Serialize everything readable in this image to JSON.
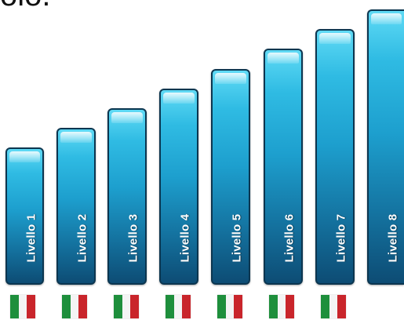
{
  "header": {
    "partial_text": "olo."
  },
  "levels": [
    {
      "label": "Livello 1",
      "has_flag": true
    },
    {
      "label": "Livello 2",
      "has_flag": true
    },
    {
      "label": "Livello 3",
      "has_flag": true
    },
    {
      "label": "Livello 4",
      "has_flag": true
    },
    {
      "label": "Livello 5",
      "has_flag": true
    },
    {
      "label": "Livello 6",
      "has_flag": true
    },
    {
      "label": "Livello 7",
      "has_flag": true
    },
    {
      "label": "Livello 8",
      "has_flag": false
    }
  ],
  "colors": {
    "bar_top": "#5fdaf5",
    "bar_bottom": "#0d4c74",
    "bar_border": "#0c3650",
    "flag_green": "#1e8f3c",
    "flag_white": "#f4f4f4",
    "flag_red": "#c9252b"
  },
  "icons": {
    "flag": "italian-flag-icon"
  }
}
